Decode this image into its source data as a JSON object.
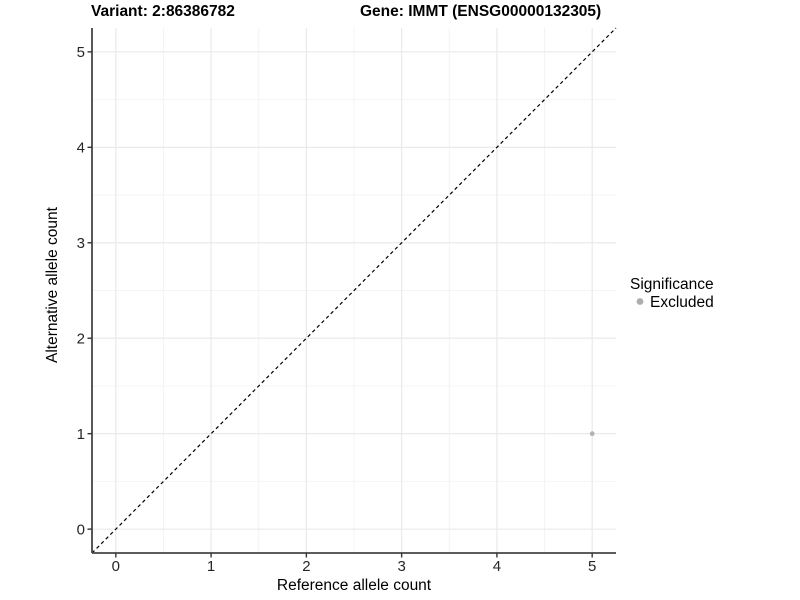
{
  "figure": {
    "title_variant": "Variant: 2:86386782",
    "title_gene": "Gene: IMMT (ENSG00000132305)"
  },
  "legend": {
    "title": "Significance",
    "items": [
      {
        "label": "Excluded",
        "color": "#aeaeae"
      }
    ]
  },
  "colors": {
    "background": "#ffffff",
    "grid_major": "#e8e8e8",
    "grid_minor": "#f4f4f4",
    "axis_line": "#454545",
    "tick_mark": "#333333",
    "tick_label": "#262626",
    "axis_title": "#000000",
    "title": "#000000",
    "dashed_line": "#000000",
    "point": "#b3b3b3"
  },
  "chart_data": {
    "type": "scatter",
    "title_left": "Variant: 2:86386782",
    "title_right": "Gene: IMMT (ENSG00000132305)",
    "xlabel": "Reference allele count",
    "ylabel": "Alternative allele count",
    "xlim": [
      -0.25,
      5.25
    ],
    "ylim": [
      -0.25,
      5.25
    ],
    "xticks": [
      0,
      1,
      2,
      3,
      4,
      5
    ],
    "yticks": [
      0,
      1,
      2,
      3,
      4,
      5
    ],
    "x_minor_ticks": [
      0.5,
      1.5,
      2.5,
      3.5,
      4.5
    ],
    "y_minor_ticks": [
      0.5,
      1.5,
      2.5,
      3.5,
      4.5
    ],
    "grid": "major+minor",
    "legend_position": "right-center",
    "series": [
      {
        "name": "Excluded",
        "color": "#b3b3b3",
        "points": [
          {
            "x": 5,
            "y": 1
          }
        ]
      }
    ],
    "reference_line": {
      "slope": 1,
      "intercept": 0,
      "style": "dashed",
      "color": "#000000"
    }
  }
}
